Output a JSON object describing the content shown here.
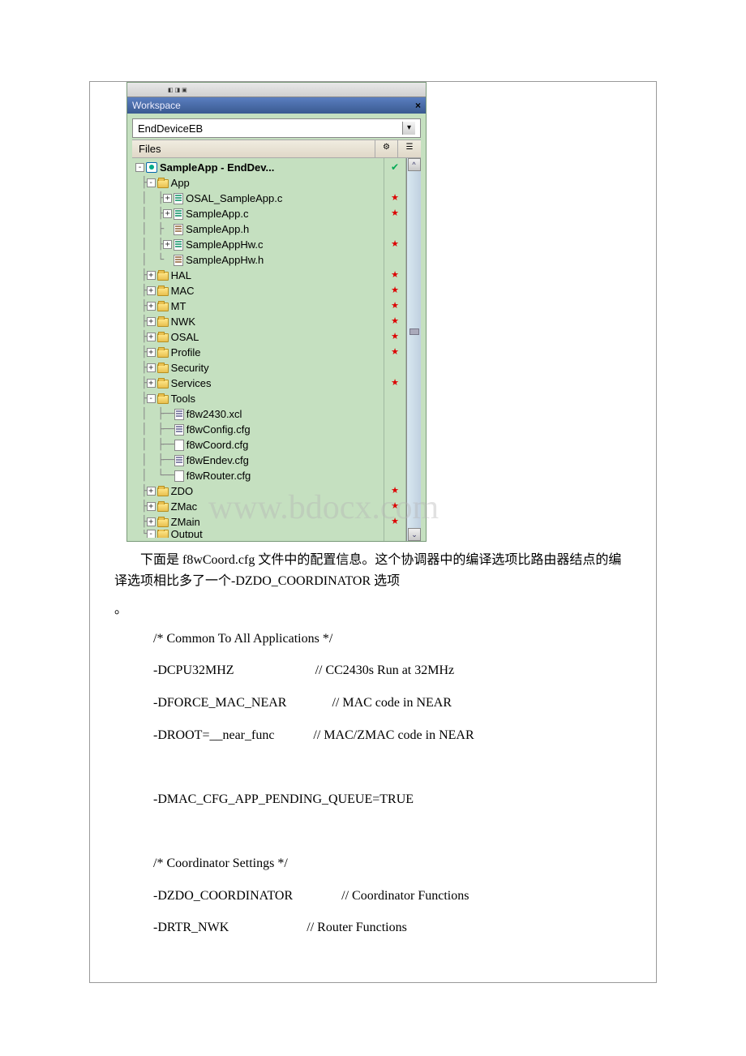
{
  "ide": {
    "panel_title": "Workspace",
    "dropdown_value": "EndDeviceEB",
    "header_files": "Files",
    "tree": {
      "root": {
        "label": "SampleApp - EndDev...",
        "check": "✔"
      },
      "app": {
        "label": "App",
        "files": [
          {
            "name": "OSAL_SampleApp.c",
            "icon": "c",
            "star": true,
            "exp": "+"
          },
          {
            "name": "SampleApp.c",
            "icon": "c",
            "star": true,
            "exp": "+"
          },
          {
            "name": "SampleApp.h",
            "icon": "h",
            "star": false,
            "exp": ""
          },
          {
            "name": "SampleAppHw.c",
            "icon": "c",
            "star": true,
            "exp": "+"
          },
          {
            "name": "SampleAppHw.h",
            "icon": "h",
            "star": false,
            "exp": ""
          }
        ]
      },
      "folders": [
        {
          "name": "HAL",
          "star": true
        },
        {
          "name": "MAC",
          "star": true
        },
        {
          "name": "MT",
          "star": true
        },
        {
          "name": "NWK",
          "star": true
        },
        {
          "name": "OSAL",
          "star": true
        },
        {
          "name": "Profile",
          "star": true
        },
        {
          "name": "Security",
          "star": false
        },
        {
          "name": "Services",
          "star": true
        }
      ],
      "tools": {
        "label": "Tools",
        "files": [
          {
            "name": "f8w2430.xcl",
            "icon": "cfg"
          },
          {
            "name": "f8wConfig.cfg",
            "icon": "cfg"
          },
          {
            "name": "f8wCoord.cfg",
            "icon": "blank"
          },
          {
            "name": "f8wEndev.cfg",
            "icon": "cfg"
          },
          {
            "name": "f8wRouter.cfg",
            "icon": "blank"
          }
        ]
      },
      "bottom_folders": [
        {
          "name": "ZDO",
          "star": true
        },
        {
          "name": "ZMac",
          "star": true
        },
        {
          "name": "ZMain",
          "star": true
        },
        {
          "name": "Output",
          "star": false,
          "cut": true
        }
      ]
    }
  },
  "watermark": "www.bdocx.com",
  "text": {
    "para1": "下面是 f8wCoord.cfg 文件中的配置信息。这个协调器中的编译选项比路由器结点的编译选项相比多了一个-DZDO_COORDINATOR 选项",
    "period": "。",
    "lines": [
      {
        "left": "/* Common To All Applications */",
        "right": ""
      },
      {
        "left": "-DCPU32MHZ",
        "right": "// CC2430s Run at 32MHz",
        "gap": "                         "
      },
      {
        "left": "-DFORCE_MAC_NEAR",
        "right": "// MAC code in NEAR",
        "gap": "              "
      },
      {
        "left": "-DROOT=__near_func",
        "right": "// MAC/ZMAC code in NEAR",
        "gap": "            "
      },
      {
        "left": "",
        "right": ""
      },
      {
        "left": "-DMAC_CFG_APP_PENDING_QUEUE=TRUE",
        "right": ""
      },
      {
        "left": "",
        "right": ""
      },
      {
        "left": "/* Coordinator Settings */",
        "right": ""
      },
      {
        "left": "-DZDO_COORDINATOR",
        "right": "// Coordinator Functions",
        "gap": "               "
      },
      {
        "left": "-DRTR_NWK",
        "right": "// Router Functions",
        "gap": "                        "
      }
    ]
  }
}
